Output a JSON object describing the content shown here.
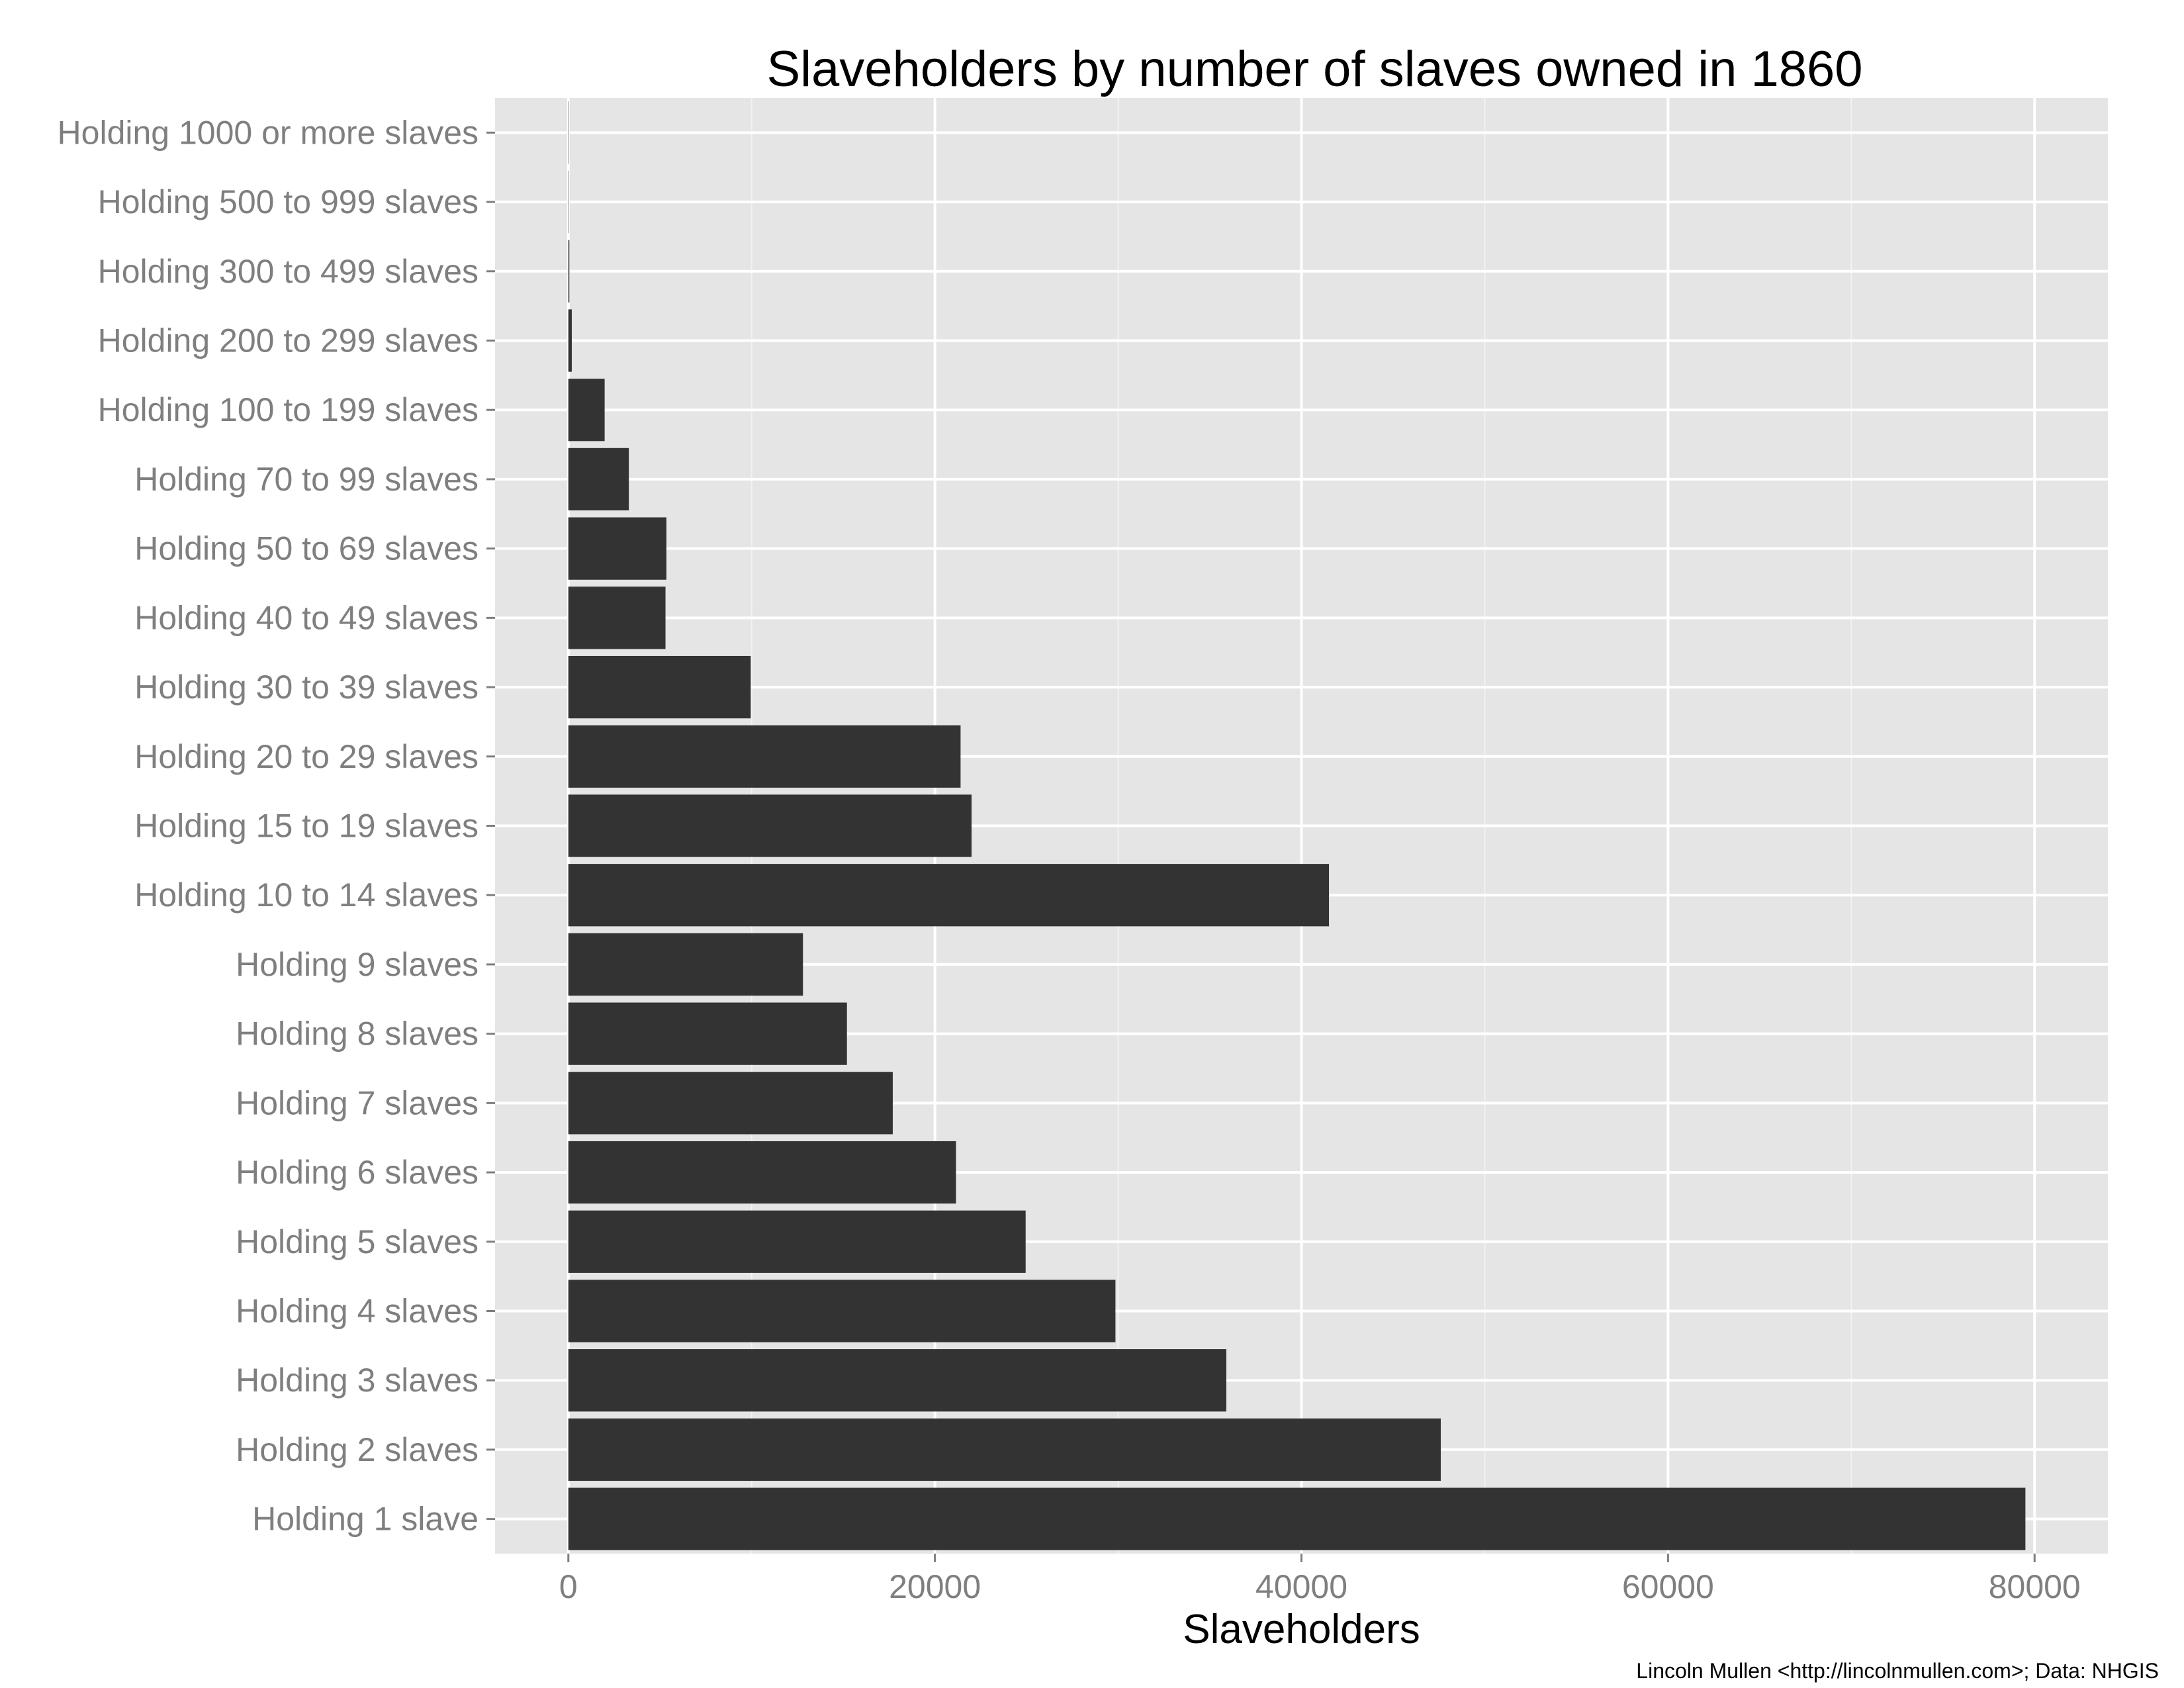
{
  "colors": {
    "panel_background": "#e5e5e5",
    "grid_major": "#ffffff",
    "grid_minor": "#f2f2f2",
    "bar_fill": "#333333",
    "tick_text": "#7f7f7f",
    "tick_mark": "#7f7f7f"
  },
  "chart_data": {
    "type": "bar",
    "orientation": "horizontal",
    "title": "Slaveholders by number of slaves owned in 1860",
    "xlabel": "Slaveholders",
    "ylabel": "",
    "caption": "Lincoln Mullen <http://lincolnmullen.com>; Data: NHGIS",
    "xlim": [
      -4000,
      84000
    ],
    "x_ticks": [
      0,
      20000,
      40000,
      60000,
      80000
    ],
    "x_tick_labels": [
      "0",
      "20000",
      "40000",
      "60000",
      "80000"
    ],
    "categories": [
      "Holding 1000 or more slaves",
      "Holding 500 to 999 slaves",
      "Holding 300 to 499 slaves",
      "Holding 200 to 299 slaves",
      "Holding 100 to 199 slaves",
      "Holding 70 to 99 slaves",
      "Holding 50 to 69 slaves",
      "Holding 40 to 49 slaves",
      "Holding 30 to 39 slaves",
      "Holding 20 to 29 slaves",
      "Holding 15 to 19 slaves",
      "Holding 10 to 14 slaves",
      "Holding 9 slaves",
      "Holding 8 slaves",
      "Holding 7 slaves",
      "Holding 6 slaves",
      "Holding 5 slaves",
      "Holding 4 slaves",
      "Holding 3 slaves",
      "Holding 2 slaves",
      "Holding 1 slave"
    ],
    "values": [
      1,
      11,
      56,
      187,
      1980,
      3300,
      5350,
      5300,
      9950,
      21400,
      22000,
      41500,
      12800,
      15200,
      17700,
      21150,
      24950,
      29850,
      35900,
      47600,
      79500
    ],
    "grid": true,
    "legend": "none"
  }
}
